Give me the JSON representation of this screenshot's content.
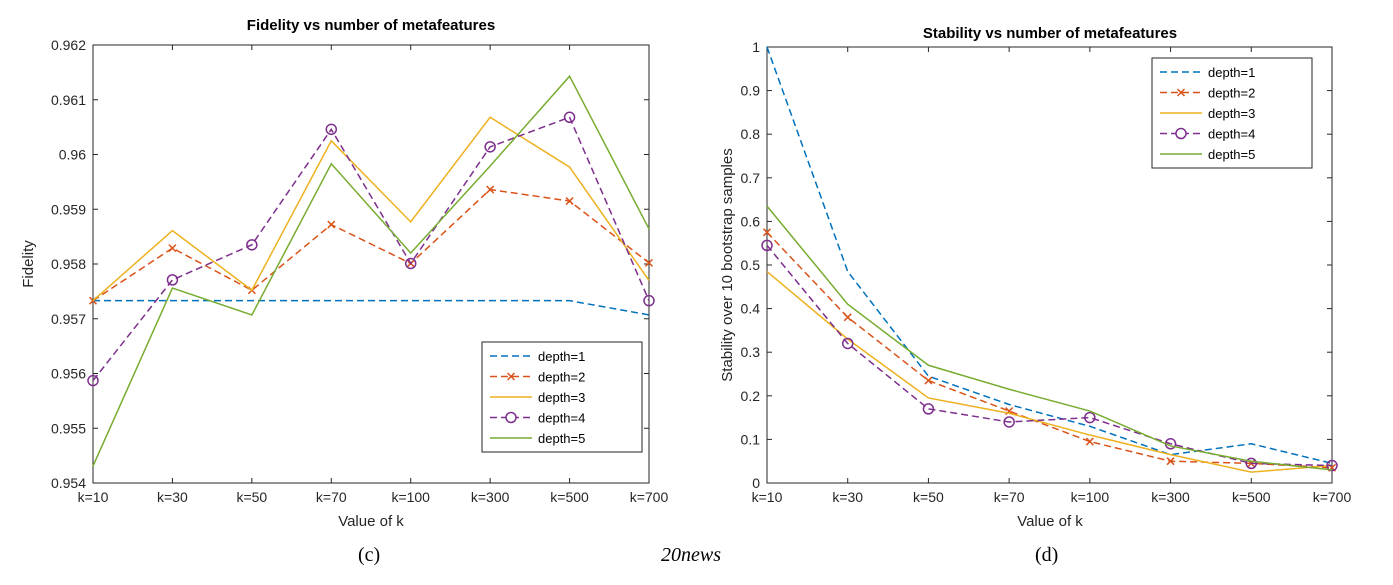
{
  "colors": {
    "depth=1": "#0072BD",
    "depth=2": "#D95319",
    "depth=3": "#EDB120",
    "depth=4": "#7E2F8E",
    "depth=5": "#77AC30"
  },
  "captions": {
    "left": "(c)",
    "center": "20news",
    "right": "(d)"
  },
  "chart_data": [
    {
      "type": "line",
      "title": "Fidelity vs number of metafeatures",
      "xlabel": "Value of k",
      "ylabel": "Fidelity",
      "categories": [
        "k=10",
        "k=30",
        "k=50",
        "k=70",
        "k=100",
        "k=300",
        "k=500",
        "k=700"
      ],
      "ylim": [
        0.954,
        0.962
      ],
      "yticks": [
        0.954,
        0.955,
        0.956,
        0.957,
        0.958,
        0.959,
        0.96,
        0.961,
        0.962
      ],
      "ytick_labels": [
        "0.954",
        "0.955",
        "0.956",
        "0.957",
        "0.958",
        "0.959",
        "0.96",
        "0.961",
        "0.962"
      ],
      "legend_position": "bottom-right",
      "series": [
        {
          "name": "depth=1",
          "style": "dashed",
          "marker": "none",
          "values": [
            0.95733,
            0.95733,
            0.95733,
            0.95733,
            0.95733,
            0.95733,
            0.95733,
            0.95707
          ]
        },
        {
          "name": "depth=2",
          "style": "dashed",
          "marker": "x",
          "values": [
            0.95733,
            0.95829,
            0.95752,
            0.95872,
            0.95801,
            0.95936,
            0.95915,
            0.95802
          ]
        },
        {
          "name": "depth=3",
          "style": "solid",
          "marker": "none",
          "values": [
            0.95733,
            0.95861,
            0.95752,
            0.96025,
            0.95877,
            0.96068,
            0.95977,
            0.9577
          ]
        },
        {
          "name": "depth=4",
          "style": "dashed",
          "marker": "o",
          "values": [
            0.95587,
            0.95771,
            0.95835,
            0.96046,
            0.95801,
            0.96014,
            0.96068,
            0.95733
          ]
        },
        {
          "name": "depth=5",
          "style": "solid",
          "marker": "none",
          "values": [
            0.95431,
            0.95756,
            0.95707,
            0.95983,
            0.9582,
            0.95979,
            0.96143,
            0.95864
          ]
        }
      ]
    },
    {
      "type": "line",
      "title": "Stability vs number of metafeatures",
      "xlabel": "Value of k",
      "ylabel": "Stability over 10 bootstrap samples",
      "categories": [
        "k=10",
        "k=30",
        "k=50",
        "k=70",
        "k=100",
        "k=300",
        "k=500",
        "k=700"
      ],
      "ylim": [
        0,
        1
      ],
      "yticks": [
        0,
        0.1,
        0.2,
        0.3,
        0.4,
        0.5,
        0.6,
        0.7,
        0.8,
        0.9,
        1
      ],
      "ytick_labels": [
        "0",
        "0.1",
        "0.2",
        "0.3",
        "0.4",
        "0.5",
        "0.6",
        "0.7",
        "0.8",
        "0.9",
        "1"
      ],
      "legend_position": "top-right",
      "series": [
        {
          "name": "depth=1",
          "style": "dashed",
          "marker": "none",
          "values": [
            1.0,
            0.485,
            0.245,
            0.18,
            0.13,
            0.065,
            0.09,
            0.045
          ]
        },
        {
          "name": "depth=2",
          "style": "dashed",
          "marker": "x",
          "values": [
            0.575,
            0.38,
            0.235,
            0.165,
            0.095,
            0.05,
            0.045,
            0.035
          ]
        },
        {
          "name": "depth=3",
          "style": "solid",
          "marker": "none",
          "values": [
            0.485,
            0.33,
            0.195,
            0.16,
            0.11,
            0.065,
            0.025,
            0.04
          ]
        },
        {
          "name": "depth=4",
          "style": "dashed",
          "marker": "o",
          "values": [
            0.545,
            0.32,
            0.17,
            0.14,
            0.15,
            0.09,
            0.045,
            0.04
          ]
        },
        {
          "name": "depth=5",
          "style": "solid",
          "marker": "none",
          "values": [
            0.635,
            0.41,
            0.27,
            0.215,
            0.165,
            0.085,
            0.05,
            0.03
          ]
        }
      ]
    }
  ]
}
